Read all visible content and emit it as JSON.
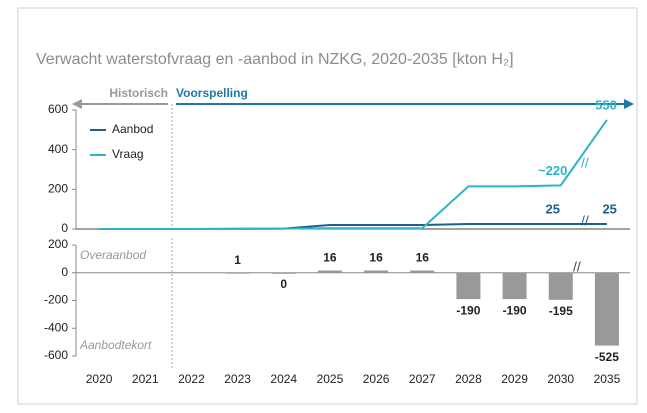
{
  "chart_data": [
    {
      "type": "line",
      "title": "Verwacht waterstofvraag en -aanbod in NZKG, 2020-2035 [kton H₂]",
      "annotations": [
        "Historisch",
        "Voorspelling"
      ],
      "categories": [
        "2020",
        "2021",
        "2022",
        "2023",
        "2024",
        "2025",
        "2026",
        "2027",
        "2028",
        "2029",
        "2030",
        "2035"
      ],
      "series": [
        {
          "name": "Aanbod",
          "color": "#1f5f8b",
          "values": [
            0,
            0,
            0,
            1,
            2,
            20,
            20,
            20,
            25,
            25,
            25,
            25
          ],
          "value_labels": [
            null,
            null,
            null,
            null,
            null,
            null,
            null,
            null,
            null,
            null,
            "25",
            "25"
          ]
        },
        {
          "name": "Vraag",
          "color": "#2fb3c8",
          "values": [
            0,
            0,
            0,
            0,
            2,
            4,
            4,
            4,
            215,
            215,
            220,
            550
          ],
          "value_labels": [
            null,
            null,
            null,
            null,
            null,
            null,
            null,
            null,
            null,
            null,
            "~220",
            "550"
          ]
        }
      ],
      "ylim": [
        0,
        600
      ],
      "yticks": [
        0,
        200,
        400,
        600
      ],
      "legend": "upper left"
    },
    {
      "type": "bar",
      "annotations": [
        "Overaanbod",
        "Aanbodtekort"
      ],
      "values": [
        null,
        null,
        null,
        1,
        0,
        16,
        16,
        16,
        -190,
        -190,
        -195,
        -525
      ],
      "color": "#999999",
      "ylim": [
        -600,
        200
      ],
      "yticks": [
        200,
        0,
        -200,
        -400,
        -600
      ]
    }
  ]
}
